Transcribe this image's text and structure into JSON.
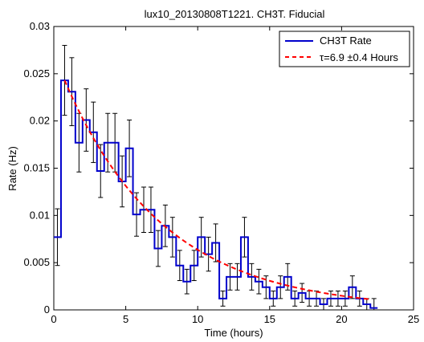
{
  "chart_data": {
    "type": "line",
    "title": "lux10_20130808T1221. CH3T. Fiducial",
    "xlabel": "Time (hours)",
    "ylabel": "Rate (Hz)",
    "xlim": [
      0,
      25
    ],
    "ylim": [
      0,
      0.03
    ],
    "x_ticks": [
      "0",
      "5",
      "10",
      "15",
      "20",
      "25"
    ],
    "y_ticks": [
      "0",
      "0.005",
      "0.01",
      "0.015",
      "0.02",
      "0.025",
      "0.03"
    ],
    "x_tick_values": [
      0,
      5,
      10,
      15,
      20,
      25
    ],
    "y_tick_values": [
      0,
      0.005,
      0.01,
      0.015,
      0.02,
      0.025,
      0.03
    ],
    "grid": false,
    "legend_position": "top-right",
    "bin_width": 0.5,
    "series": [
      {
        "name": "CH3T Rate",
        "style": "step",
        "color": "#0000cc",
        "x": [
          0.25,
          0.75,
          1.25,
          1.75,
          2.25,
          2.75,
          3.25,
          3.75,
          4.25,
          4.75,
          5.25,
          5.75,
          6.25,
          6.75,
          7.25,
          7.75,
          8.25,
          8.75,
          9.25,
          9.75,
          10.25,
          10.75,
          11.25,
          11.75,
          12.25,
          12.75,
          13.25,
          13.75,
          14.25,
          14.75,
          15.25,
          15.75,
          16.25,
          16.75,
          17.25,
          17.75,
          18.25,
          18.75,
          19.25,
          19.75,
          20.25,
          20.75,
          21.25,
          21.75,
          22.25
        ],
        "y": [
          0.0077,
          0.0243,
          0.0231,
          0.0177,
          0.0201,
          0.0188,
          0.0147,
          0.0177,
          0.0177,
          0.0136,
          0.0171,
          0.0101,
          0.0106,
          0.0106,
          0.0065,
          0.0089,
          0.0077,
          0.0047,
          0.003,
          0.0047,
          0.0077,
          0.0059,
          0.0071,
          0.0012,
          0.0035,
          0.0035,
          0.0077,
          0.0035,
          0.003,
          0.0024,
          0.0012,
          0.0024,
          0.0035,
          0.0012,
          0.0018,
          0.0012,
          0.0012,
          0.0006,
          0.0012,
          0.0012,
          0.0012,
          0.0024,
          0.0012,
          0.0006,
          0.0002
        ],
        "err": [
          0.003,
          0.0037,
          0.0036,
          0.0031,
          0.0033,
          0.0032,
          0.0028,
          0.0031,
          0.0031,
          0.0027,
          0.003,
          0.0023,
          0.0024,
          0.0024,
          0.0019,
          0.0022,
          0.0021,
          0.0016,
          0.0013,
          0.0016,
          0.0021,
          0.0018,
          0.002,
          0.0008,
          0.0014,
          0.0014,
          0.0021,
          0.0014,
          0.0013,
          0.0012,
          0.0008,
          0.0012,
          0.0014,
          0.0008,
          0.001,
          0.0008,
          0.0008,
          0.0006,
          0.0008,
          0.0008,
          0.0008,
          0.0012,
          0.0008,
          0.0006,
          0.001
        ]
      },
      {
        "name": "τ=6.9  ±0.4 Hours",
        "style": "dashed",
        "color": "#ff0000",
        "x": [
          0.75,
          22.0
        ],
        "y": [
          0.0243,
          0.0011
        ],
        "tau": 6.9
      }
    ]
  }
}
